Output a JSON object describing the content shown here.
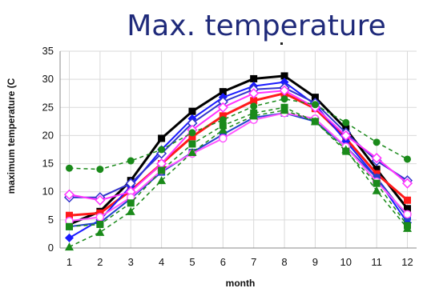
{
  "chart_data": {
    "type": "line",
    "title": "Max. temperature",
    "xlabel": "month",
    "ylabel": "maximum temperature (C",
    "x": [
      1,
      2,
      3,
      4,
      5,
      6,
      7,
      8,
      9,
      10,
      11,
      12
    ],
    "xlim": [
      0.7,
      12.3
    ],
    "ylim": [
      0,
      35
    ],
    "yticks": [
      0,
      5,
      10,
      15,
      20,
      25,
      30,
      35
    ],
    "grid": true,
    "legend": "none",
    "series": [
      {
        "values": [
          4.2,
          6.5,
          12.0,
          19.5,
          24.3,
          27.8,
          30.1,
          30.6,
          26.8,
          21.2,
          14.0,
          7.0
        ],
        "color": "#000000",
        "marker": "square",
        "dash": false,
        "width": 3
      },
      {
        "values": [
          5.8,
          6.2,
          10.2,
          15.0,
          19.8,
          23.5,
          26.2,
          27.5,
          24.8,
          19.5,
          13.2,
          8.5
        ],
        "color": "#ff1a1a",
        "marker": "square",
        "dash": false,
        "width": 3
      },
      {
        "values": [
          1.8,
          5.0,
          11.0,
          17.5,
          23.0,
          26.8,
          28.8,
          29.5,
          25.5,
          19.0,
          12.5,
          4.5
        ],
        "color": "#1a1aff",
        "marker": "diamond",
        "dash": false,
        "width": 2
      },
      {
        "values": [
          9.0,
          9.0,
          11.5,
          16.8,
          22.2,
          26.0,
          28.2,
          28.5,
          25.8,
          20.5,
          15.5,
          12.0
        ],
        "color": "#3333cc",
        "marker": "diamond-open",
        "dash": false,
        "width": 2
      },
      {
        "values": [
          9.5,
          8.5,
          10.0,
          15.0,
          21.0,
          25.0,
          27.5,
          28.0,
          25.0,
          20.0,
          16.0,
          11.5
        ],
        "color": "#ff33ff",
        "marker": "diamond-open",
        "dash": false,
        "width": 2
      },
      {
        "values": [
          3.8,
          4.5,
          8.8,
          13.5,
          17.0,
          20.2,
          23.2,
          24.0,
          22.5,
          18.0,
          12.5,
          5.5
        ],
        "color": "#2244cc",
        "marker": "square",
        "dash": false,
        "width": 2
      },
      {
        "values": [
          4.8,
          5.5,
          9.0,
          13.8,
          16.8,
          19.5,
          22.8,
          24.0,
          23.0,
          18.0,
          11.8,
          6.0
        ],
        "color": "#ff55ff",
        "marker": "circle-open",
        "dash": false,
        "width": 2
      },
      {
        "values": [
          14.2,
          14.0,
          15.5,
          17.5,
          20.5,
          22.8,
          25.2,
          26.5,
          25.5,
          22.3,
          18.8,
          15.8
        ],
        "color": "#1a8a1a",
        "marker": "circle",
        "dash": true,
        "width": 1.5
      },
      {
        "values": [
          3.8,
          4.2,
          8.0,
          13.8,
          18.5,
          21.8,
          24.0,
          25.0,
          22.5,
          17.2,
          11.5,
          4.0
        ],
        "color": "#1a8a1a",
        "marker": "square",
        "dash": true,
        "width": 1.5
      },
      {
        "values": [
          0.2,
          2.8,
          6.5,
          12.0,
          17.0,
          21.0,
          23.5,
          24.5,
          22.5,
          17.5,
          10.2,
          3.5
        ],
        "color": "#1a8a1a",
        "marker": "triangle",
        "dash": true,
        "width": 1.5
      }
    ]
  }
}
